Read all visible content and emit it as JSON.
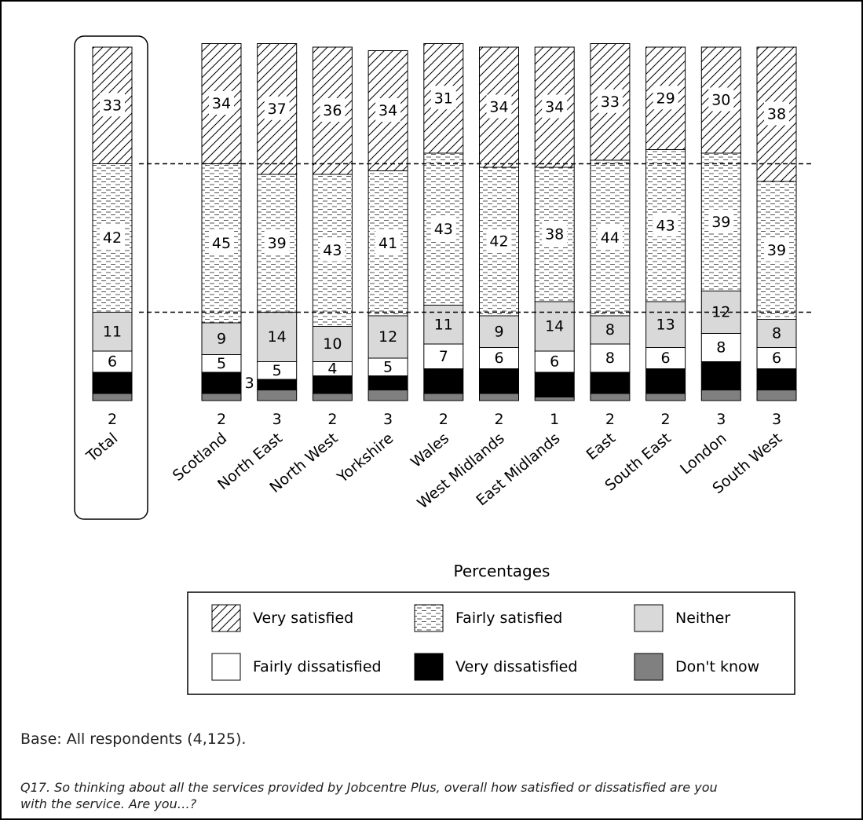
{
  "chart_data": {
    "type": "bar",
    "stacked": true,
    "normalized": true,
    "xlabel": "Percentages",
    "categories": [
      "Total",
      "Scotland",
      "North East",
      "North West",
      "Yorkshire",
      "Wales",
      "West Midlands",
      "East Midlands",
      "East",
      "South East",
      "London",
      "South West"
    ],
    "series": [
      {
        "name": "Don't know",
        "color": "#808080",
        "pattern": "solid-dark-grey",
        "values": [
          2,
          2,
          3,
          2,
          3,
          2,
          2,
          1,
          2,
          2,
          3,
          3
        ]
      },
      {
        "name": "Very dissatisfied",
        "color": "#000000",
        "pattern": "solid-black",
        "values": [
          6,
          6,
          3,
          5,
          4,
          7,
          7,
          7,
          6,
          7,
          8,
          6
        ]
      },
      {
        "name": "Fairly dissatisfied",
        "color": "#ffffff",
        "pattern": "solid-white",
        "values": [
          6,
          5,
          5,
          4,
          5,
          7,
          6,
          6,
          8,
          6,
          8,
          6
        ]
      },
      {
        "name": "Neither",
        "color": "#d9d9d9",
        "pattern": "solid-light-grey",
        "values": [
          11,
          9,
          14,
          10,
          12,
          11,
          9,
          14,
          8,
          13,
          12,
          8
        ]
      },
      {
        "name": "Fairly satisfied",
        "color": "#ffffff",
        "pattern": "horizontal-dashes",
        "values": [
          42,
          45,
          39,
          43,
          41,
          43,
          42,
          38,
          44,
          43,
          39,
          39
        ]
      },
      {
        "name": "Very satisfied",
        "color": "#ffffff",
        "pattern": "diagonal-hatch",
        "values": [
          33,
          34,
          37,
          36,
          34,
          31,
          34,
          34,
          33,
          29,
          30,
          38
        ]
      }
    ],
    "highlighted_category": "Total",
    "reference_lines": "dashed lines at the Total bar's segment boundaries",
    "legend": {
      "placement": "bottom-center",
      "order": [
        "Very satisfied",
        "Fairly satisfied",
        "Neither",
        "Fairly dissatisfied",
        "Very dissatisfied",
        "Don't know"
      ]
    }
  },
  "notes": {
    "base": "Base: All respondents (4,125).",
    "question": "Q17. So thinking about all the services provided by Jobcentre Plus, overall how satisfied or dissatisfied are you with the service. Are you…?"
  }
}
